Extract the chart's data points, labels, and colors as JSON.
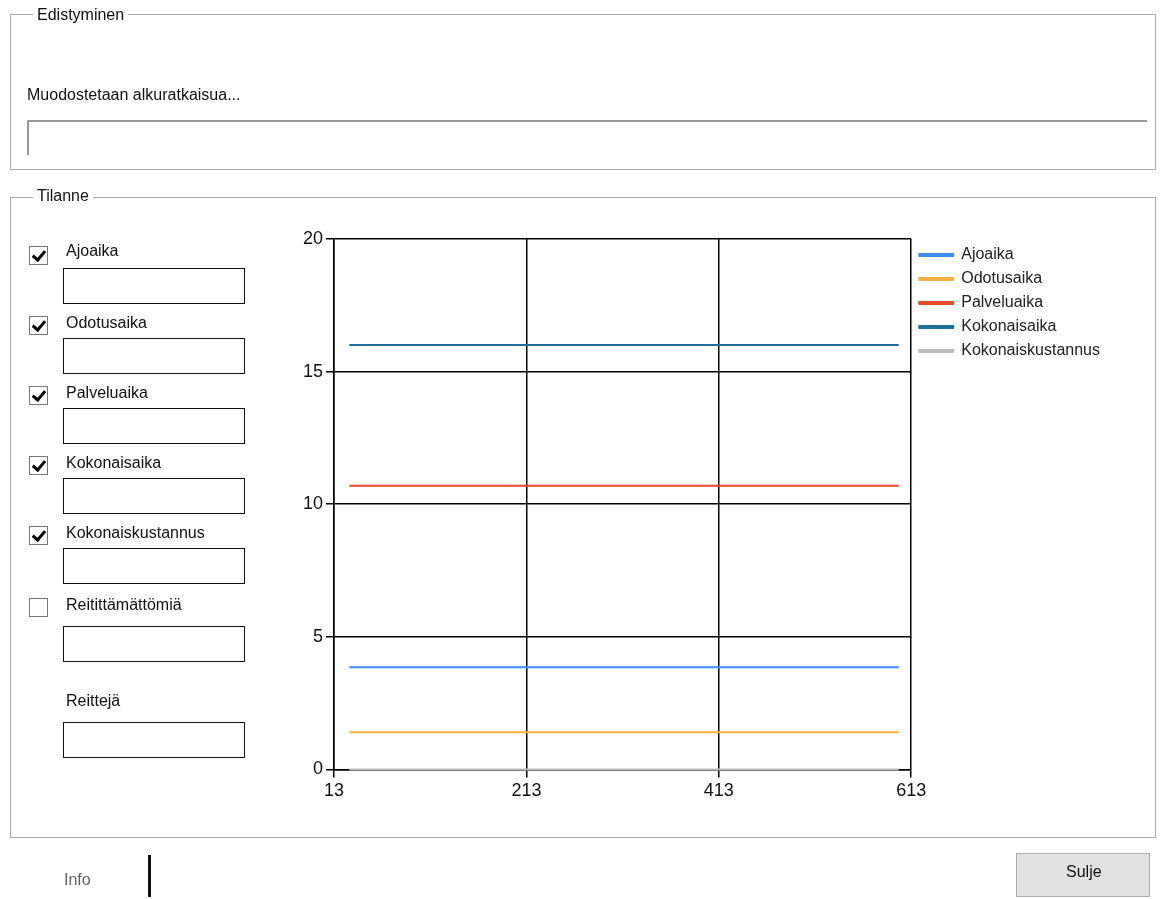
{
  "chart_data": {
    "type": "line",
    "x": [
      29,
      600
    ],
    "series": [
      {
        "name": "Ajoaika",
        "color": "#3d8ef0",
        "values": [
          3.85,
          3.85
        ]
      },
      {
        "name": "Odotusaika",
        "color": "#f5b041",
        "values": [
          1.4,
          1.4
        ]
      },
      {
        "name": "Palveluaika",
        "color": "#e8472a",
        "values": [
          10.7,
          10.7
        ]
      },
      {
        "name": "Kokonaisaika",
        "color": "#1f6e9c",
        "values": [
          16,
          16
        ]
      },
      {
        "name": "Kokonaiskustannus",
        "color": "#bdbdbd",
        "values": [
          0,
          0
        ]
      }
    ],
    "xlim": [
      13,
      613
    ],
    "xticks": [
      13,
      213,
      413,
      613
    ],
    "ylim": [
      0,
      20
    ],
    "yticks": [
      0,
      5,
      10,
      15,
      20
    ],
    "grid": true,
    "legend": "top right",
    "marker": "none",
    "line_style": "solid",
    "annotations": [
      "Edistyminen",
      "Muodostetaan alkuratkaisua...",
      "Tilanne",
      "Ajoaika",
      "Odotusaika",
      "Palveluaika",
      "Kokonaisaika",
      "Kokonaiskustannus",
      "Reitittämättömiä",
      "Reittejä",
      "Info",
      "Sulje"
    ]
  }
}
